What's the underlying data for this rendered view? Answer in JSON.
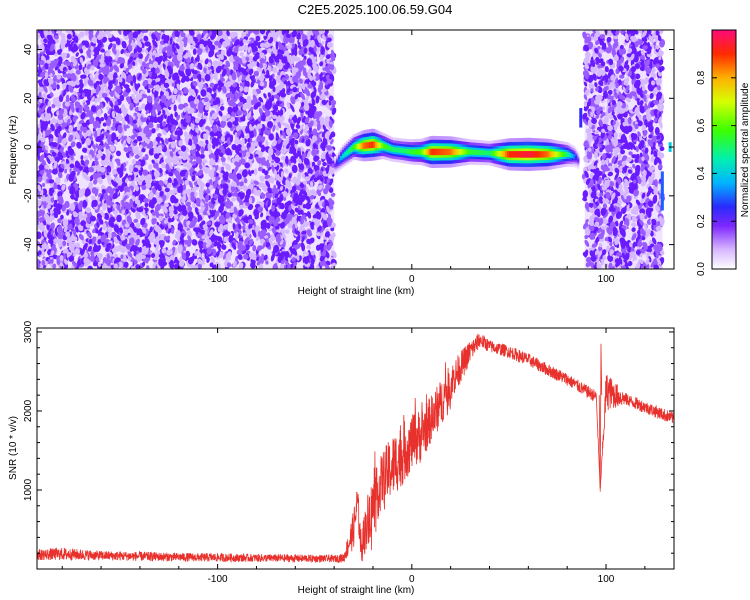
{
  "page": {
    "title": "C2E5.2025.100.06.59.G04"
  },
  "colors": {
    "snr_line": "#e8312c",
    "frame": "#000000"
  },
  "chart_data": [
    {
      "type": "heatmap",
      "title": "C2E5.2025.100.06.59.G04",
      "xlabel": "Height of straight line (km)",
      "ylabel": "Frequency (Hz)",
      "xlim": [
        -193,
        135
      ],
      "ylim": [
        -50,
        48
      ],
      "xticks": [
        -100,
        0,
        100
      ],
      "yticks": [
        -40,
        -20,
        0,
        20,
        40
      ],
      "noise_regions": [
        {
          "x": [
            -193,
            -40
          ],
          "y": [
            -50,
            48
          ]
        },
        {
          "x": [
            89,
            129
          ],
          "y": [
            -50,
            48
          ]
        }
      ],
      "signal_track": {
        "x": [
          -40,
          -36,
          -30,
          -25,
          -20,
          -15,
          -10,
          -5,
          0,
          5,
          10,
          20,
          30,
          40,
          50,
          60,
          70,
          80,
          84,
          86
        ],
        "freq": [
          -8,
          -4,
          0,
          0.5,
          1,
          0.5,
          -1,
          -1.5,
          -2,
          -2,
          -2,
          -2,
          -2,
          -2.5,
          -3,
          -3,
          -3,
          -3,
          -4,
          -6
        ],
        "amplitude": [
          0.15,
          0.4,
          0.55,
          0.85,
          0.9,
          0.6,
          0.5,
          0.5,
          0.55,
          0.6,
          0.9,
          0.85,
          0.55,
          0.5,
          0.9,
          0.95,
          0.85,
          0.5,
          0.3,
          0.15
        ]
      },
      "colorbar": {
        "label": "Normalized spectral amplitude",
        "range": [
          0,
          1
        ],
        "ticks": [
          "0.0",
          "0.2",
          "0.4",
          "0.6",
          "0.8"
        ]
      }
    },
    {
      "type": "line",
      "xlabel": "Height of straight line (km)",
      "ylabel": "SNR (10 * v/v)",
      "xlim": [
        -193,
        135
      ],
      "ylim": [
        0,
        3050
      ],
      "xticks": [
        -100,
        0,
        100
      ],
      "yticks": [
        1000,
        2000,
        3000
      ],
      "series": [
        {
          "x": [
            -193,
            -180,
            -160,
            -140,
            -120,
            -100,
            -80,
            -60,
            -40,
            -35,
            -30,
            -28,
            -26,
            -24,
            -22,
            -20,
            -15,
            -10,
            -5,
            0,
            5,
            10,
            15,
            20,
            25,
            30,
            35,
            40,
            50,
            60,
            70,
            80,
            90,
            95,
            97,
            100,
            110,
            120,
            130,
            135
          ],
          "values": [
            180,
            190,
            170,
            160,
            150,
            145,
            140,
            135,
            130,
            140,
            500,
            850,
            250,
            500,
            700,
            800,
            1150,
            1300,
            1450,
            1600,
            1700,
            1900,
            2100,
            2350,
            2550,
            2750,
            2900,
            2820,
            2750,
            2650,
            2520,
            2400,
            2250,
            2180,
            1000,
            2250,
            2150,
            2050,
            1950,
            1900
          ],
          "noise_amplitude": [
            70,
            80,
            60,
            60,
            55,
            55,
            50,
            50,
            45,
            60,
            250,
            250,
            200,
            300,
            350,
            350,
            350,
            400,
            400,
            350,
            350,
            300,
            300,
            250,
            200,
            150,
            100,
            80,
            80,
            80,
            80,
            80,
            80,
            80,
            0,
            250,
            80,
            80,
            80,
            80
          ]
        }
      ]
    }
  ]
}
